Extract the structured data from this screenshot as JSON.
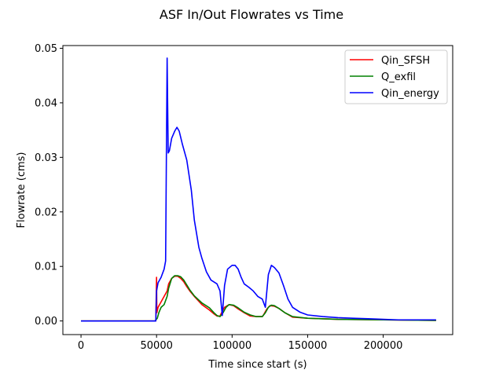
{
  "chart_data": {
    "type": "line",
    "title": "ASF In/Out Flowrates vs Time",
    "xlabel": "Time since start (s)",
    "ylabel": "Flowrate (cms)",
    "xlim": [
      -12000,
      246000
    ],
    "ylim": [
      -0.0025,
      0.0505
    ],
    "xticks": [
      0,
      50000,
      100000,
      150000,
      200000
    ],
    "xtick_labels": [
      "0",
      "50000",
      "100000",
      "150000",
      "200000"
    ],
    "yticks": [
      0.0,
      0.01,
      0.02,
      0.03,
      0.04,
      0.05
    ],
    "ytick_labels": [
      "0.00",
      "0.01",
      "0.02",
      "0.03",
      "0.04",
      "0.05"
    ],
    "grid": false,
    "legend": "top-right",
    "series": [
      {
        "name": "Qin_SFSH",
        "color": "#ff0000",
        "x": [
          0,
          49500,
          50000,
          50200,
          51000,
          53000,
          55000,
          57000,
          58000,
          60000,
          62000,
          64000,
          66000,
          68000,
          70000,
          72000,
          75000,
          80000,
          85000,
          88000,
          90000,
          92000,
          93000,
          95000,
          98000,
          101000,
          104000,
          108000,
          112000,
          116000,
          120000,
          121000,
          123000,
          125000,
          128000,
          131000,
          135000,
          140000,
          150000,
          170000,
          200000,
          235000
        ],
        "values": [
          0,
          0,
          0.008,
          0.0015,
          0.0025,
          0.0035,
          0.0045,
          0.0055,
          0.0068,
          0.0078,
          0.0082,
          0.0082,
          0.0078,
          0.0072,
          0.0063,
          0.0055,
          0.0045,
          0.003,
          0.002,
          0.0013,
          0.0009,
          0.0009,
          0.0015,
          0.0025,
          0.003,
          0.0028,
          0.0022,
          0.0015,
          0.0009,
          0.0008,
          0.0008,
          0.0012,
          0.0022,
          0.0028,
          0.0027,
          0.0023,
          0.0015,
          0.0007,
          0.0005,
          0.0003,
          0.0002,
          0.0001
        ]
      },
      {
        "name": "Q_exfil",
        "color": "#008000",
        "x": [
          0,
          49000,
          50500,
          51500,
          53000,
          55000,
          57000,
          58000,
          60000,
          62000,
          64000,
          66000,
          68000,
          70000,
          72000,
          75000,
          80000,
          85000,
          88000,
          90000,
          92000,
          94000,
          96000,
          98000,
          101000,
          104000,
          108000,
          112000,
          116000,
          120000,
          122000,
          124000,
          126000,
          128000,
          131000,
          135000,
          140000,
          150000,
          170000,
          200000,
          235000
        ],
        "values": [
          0,
          0,
          0.0005,
          0.0015,
          0.0025,
          0.003,
          0.0045,
          0.006,
          0.0078,
          0.0083,
          0.0083,
          0.0081,
          0.0075,
          0.0066,
          0.0057,
          0.0046,
          0.0033,
          0.0024,
          0.0015,
          0.001,
          0.0008,
          0.0015,
          0.0025,
          0.003,
          0.0029,
          0.0024,
          0.0016,
          0.0011,
          0.0008,
          0.0008,
          0.0015,
          0.0025,
          0.0029,
          0.0028,
          0.0023,
          0.0015,
          0.0008,
          0.0005,
          0.0003,
          0.0002,
          0.0001
        ]
      },
      {
        "name": "Qin_energy",
        "color": "#0000ff",
        "x": [
          0,
          49500,
          50000,
          51000,
          53000,
          55000,
          56000,
          56500,
          57000,
          57700,
          58500,
          60000,
          62000,
          63500,
          65000,
          67000,
          70000,
          73000,
          75000,
          78000,
          80000,
          83000,
          86000,
          90000,
          92000,
          93500,
          95000,
          97000,
          100000,
          102000,
          104000,
          106000,
          108000,
          111000,
          114000,
          117000,
          120000,
          122000,
          124000,
          126000,
          128000,
          131000,
          134000,
          137000,
          140000,
          145000,
          150000,
          160000,
          170000,
          180000,
          190000,
          200000,
          210000,
          220000,
          235000
        ],
        "values": [
          0,
          0,
          0.0055,
          0.007,
          0.008,
          0.0095,
          0.011,
          0.03,
          0.0482,
          0.0308,
          0.0312,
          0.0335,
          0.0348,
          0.0355,
          0.0348,
          0.0325,
          0.0295,
          0.024,
          0.0185,
          0.0135,
          0.0115,
          0.009,
          0.0075,
          0.0068,
          0.0055,
          0.001,
          0.0065,
          0.0095,
          0.0102,
          0.0102,
          0.0095,
          0.008,
          0.0068,
          0.0062,
          0.0055,
          0.0045,
          0.004,
          0.0025,
          0.0085,
          0.0102,
          0.0098,
          0.0088,
          0.0065,
          0.004,
          0.0025,
          0.0016,
          0.0011,
          0.0008,
          0.0006,
          0.0005,
          0.0004,
          0.0003,
          0.0002,
          0.0002,
          0.0002
        ]
      }
    ]
  }
}
